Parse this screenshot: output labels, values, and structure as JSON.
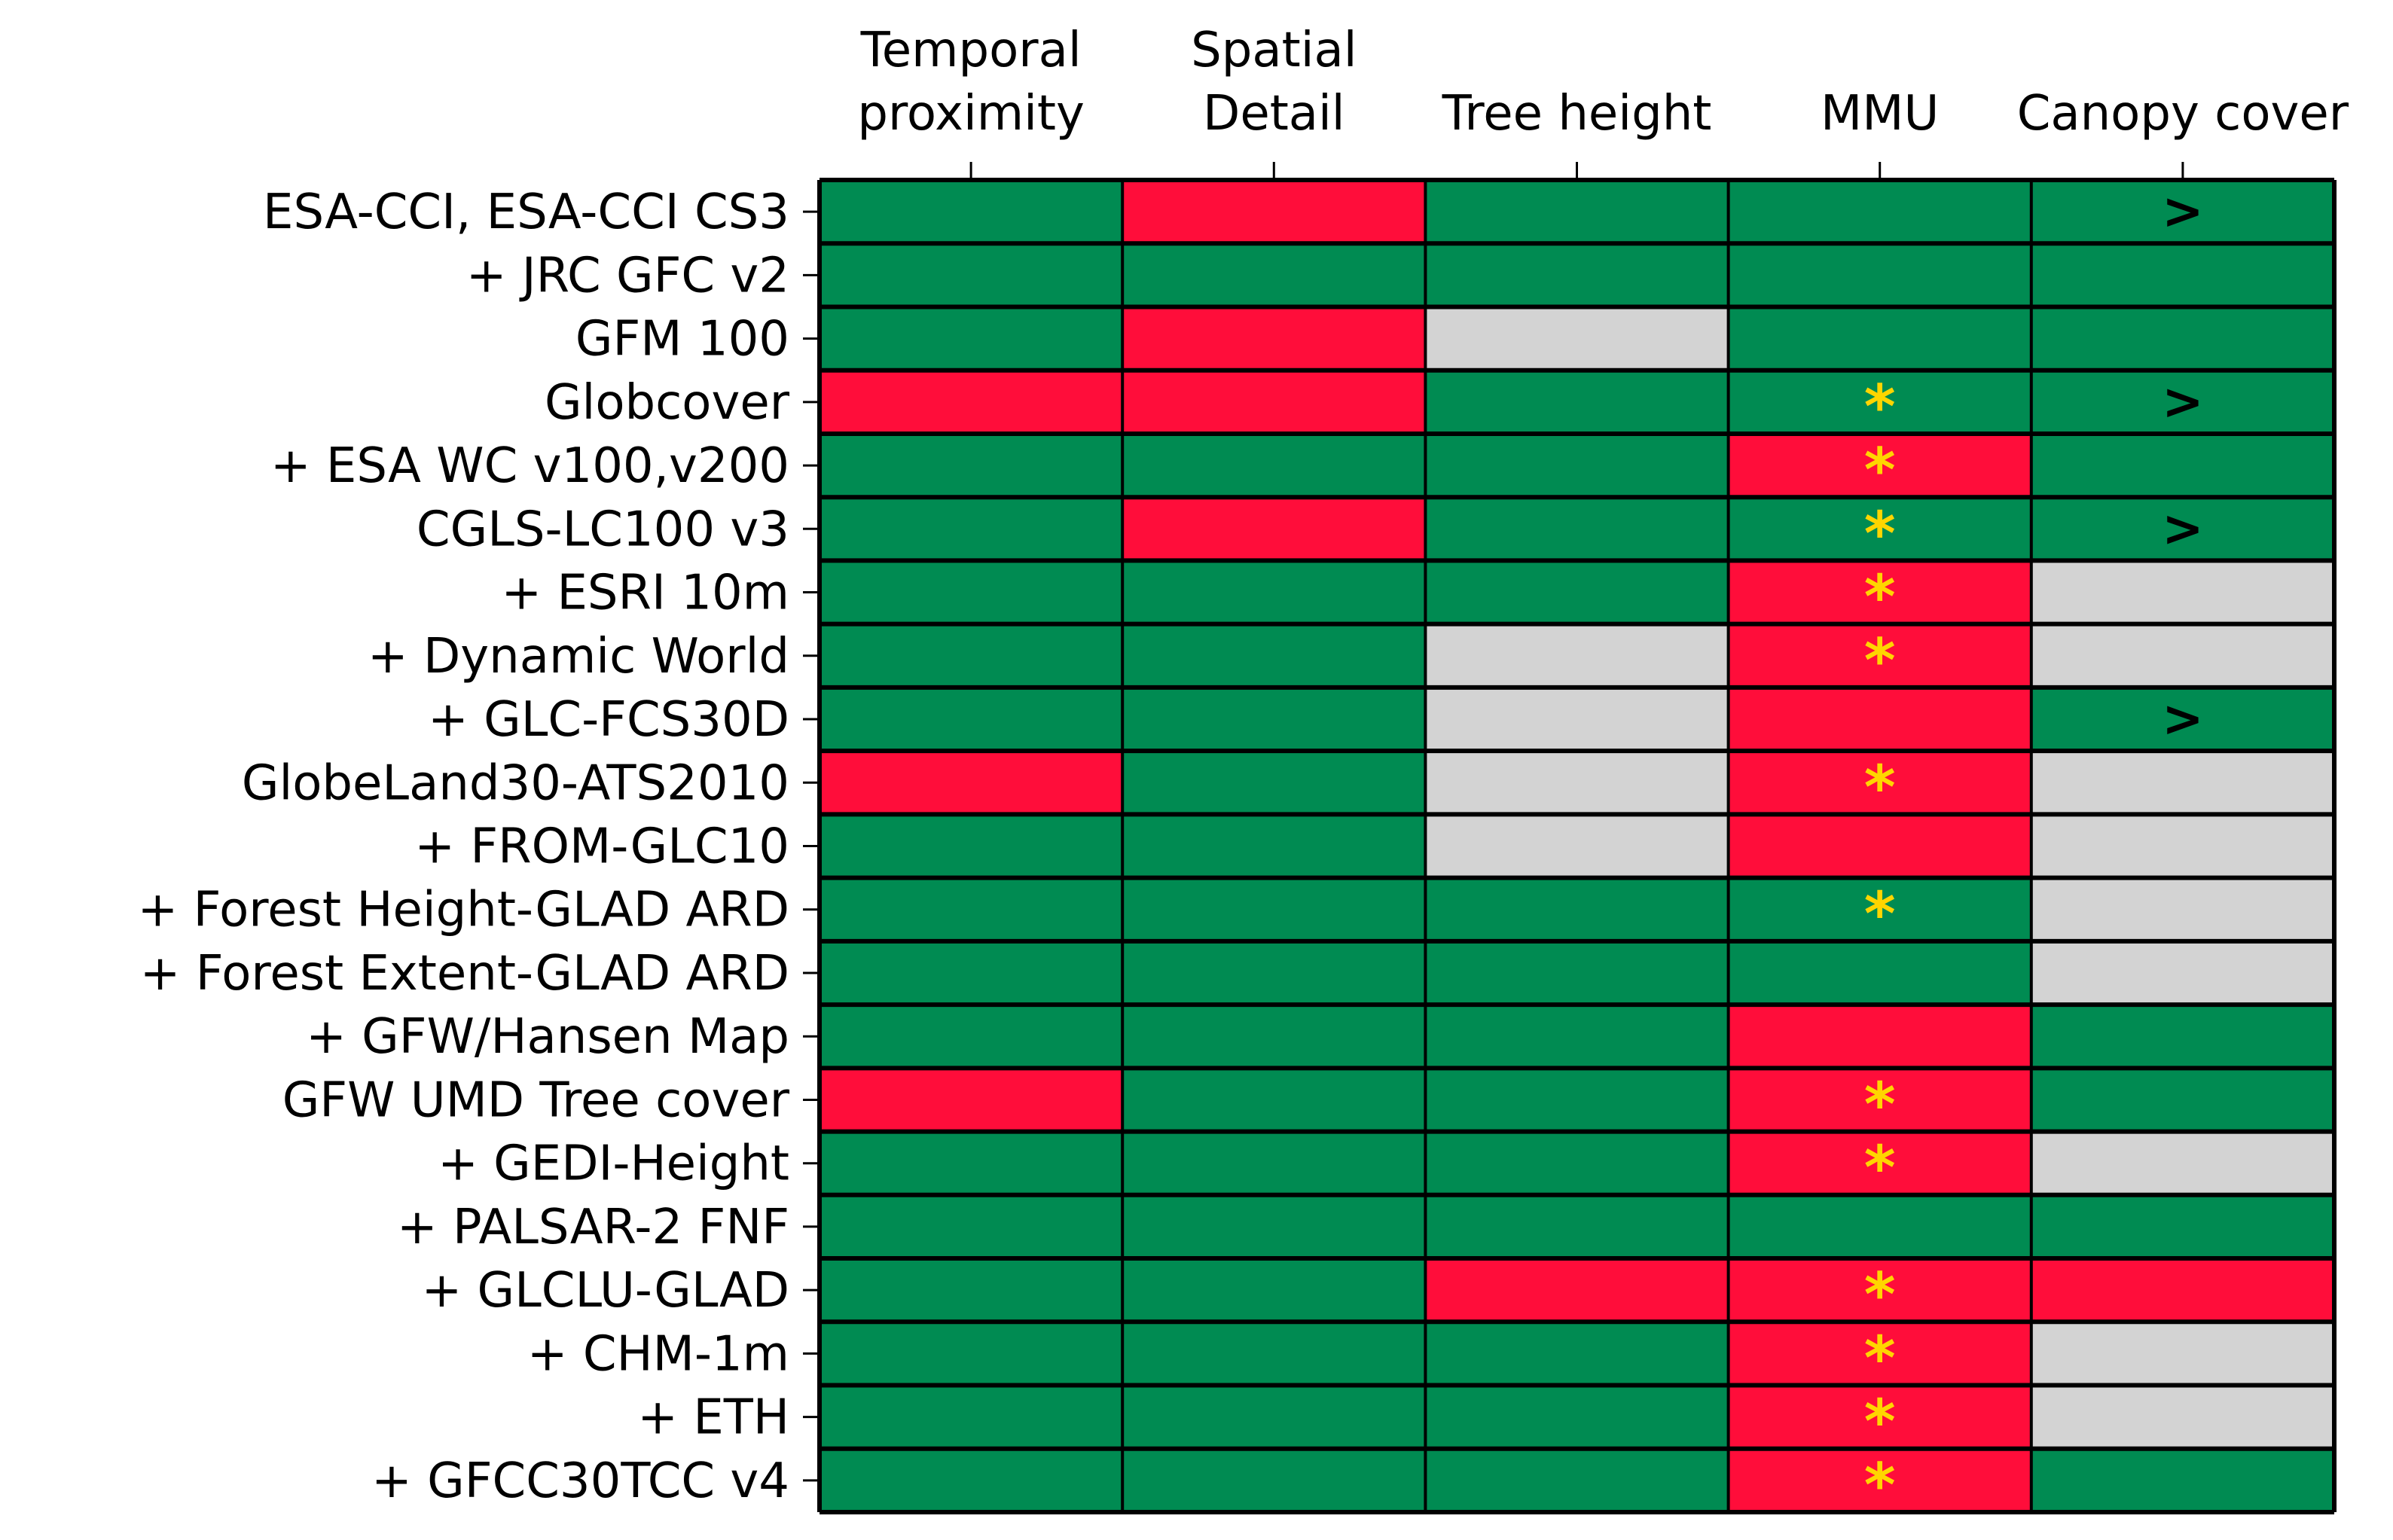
{
  "chart_data": {
    "type": "heatmap",
    "columns": [
      [
        "Temporal",
        "proximity"
      ],
      [
        "Spatial",
        "Detail"
      ],
      [
        "Tree height"
      ],
      [
        "MMU"
      ],
      [
        "Canopy cover"
      ]
    ],
    "rows": [
      "ESA-CCI, ESA-CCI CS3",
      "+ JRC GFC v2",
      "GFM 100",
      "Globcover",
      "+ ESA WC v100,v200",
      "CGLS-LC100 v3",
      "+ ESRI 10m",
      "+ Dynamic World",
      "+ GLC-FCS30D",
      "GlobeLand30-ATS2010",
      "+ FROM-GLC10",
      "+ Forest Height-GLAD ARD",
      "+ Forest Extent-GLAD ARD",
      "+ GFW/Hansen Map",
      "GFW UMD Tree cover",
      "+ GEDI-Height",
      "+ PALSAR-2 FNF",
      "+ GLCLU-GLAD",
      "+ CHM-1m",
      "+ ETH",
      "+ GFCC30TCC v4"
    ],
    "cell_states": [
      [
        "G",
        "R",
        "G",
        "G",
        "G"
      ],
      [
        "G",
        "G",
        "G",
        "G",
        "G"
      ],
      [
        "G",
        "R",
        "N",
        "G",
        "G"
      ],
      [
        "R",
        "R",
        "G",
        "G",
        "G"
      ],
      [
        "G",
        "G",
        "G",
        "R",
        "G"
      ],
      [
        "G",
        "R",
        "G",
        "G",
        "G"
      ],
      [
        "G",
        "G",
        "G",
        "R",
        "N"
      ],
      [
        "G",
        "G",
        "N",
        "R",
        "N"
      ],
      [
        "G",
        "G",
        "N",
        "R",
        "G"
      ],
      [
        "R",
        "G",
        "N",
        "R",
        "N"
      ],
      [
        "G",
        "G",
        "N",
        "R",
        "N"
      ],
      [
        "G",
        "G",
        "G",
        "G",
        "N"
      ],
      [
        "G",
        "G",
        "G",
        "G",
        "N"
      ],
      [
        "G",
        "G",
        "G",
        "R",
        "G"
      ],
      [
        "R",
        "G",
        "G",
        "R",
        "G"
      ],
      [
        "G",
        "G",
        "G",
        "R",
        "N"
      ],
      [
        "G",
        "G",
        "G",
        "G",
        "G"
      ],
      [
        "G",
        "G",
        "R",
        "R",
        "R"
      ],
      [
        "G",
        "G",
        "G",
        "R",
        "N"
      ],
      [
        "G",
        "G",
        "G",
        "R",
        "N"
      ],
      [
        "G",
        "G",
        "G",
        "R",
        "G"
      ]
    ],
    "cell_markers": [
      [
        "",
        "",
        "",
        "",
        ">"
      ],
      [
        "",
        "",
        "",
        "",
        ""
      ],
      [
        "",
        "",
        "",
        "",
        ""
      ],
      [
        "",
        "",
        "",
        "*",
        ">"
      ],
      [
        "",
        "",
        "",
        "*",
        ""
      ],
      [
        "",
        "",
        "",
        "*",
        ">"
      ],
      [
        "",
        "",
        "",
        "*",
        ""
      ],
      [
        "",
        "",
        "",
        "*",
        ""
      ],
      [
        "",
        "",
        "",
        "",
        ">"
      ],
      [
        "",
        "",
        "",
        "*",
        ""
      ],
      [
        "",
        "",
        "",
        "",
        ""
      ],
      [
        "",
        "",
        "",
        "*",
        ""
      ],
      [
        "",
        "",
        "",
        "",
        ""
      ],
      [
        "",
        "",
        "",
        "",
        ""
      ],
      [
        "",
        "",
        "",
        "*",
        ""
      ],
      [
        "",
        "",
        "",
        "*",
        ""
      ],
      [
        "",
        "",
        "",
        "",
        ""
      ],
      [
        "",
        "",
        "",
        "*",
        ""
      ],
      [
        "",
        "",
        "",
        "*",
        ""
      ],
      [
        "",
        "",
        "",
        "*",
        ""
      ],
      [
        "",
        "",
        "",
        "*",
        ""
      ]
    ],
    "colors": {
      "G": "#008B52",
      "R": "#FF0D3A",
      "N": "#D3D3D3",
      "star": "#FFD500",
      "gt": "#000000",
      "grid": "#000000"
    }
  }
}
